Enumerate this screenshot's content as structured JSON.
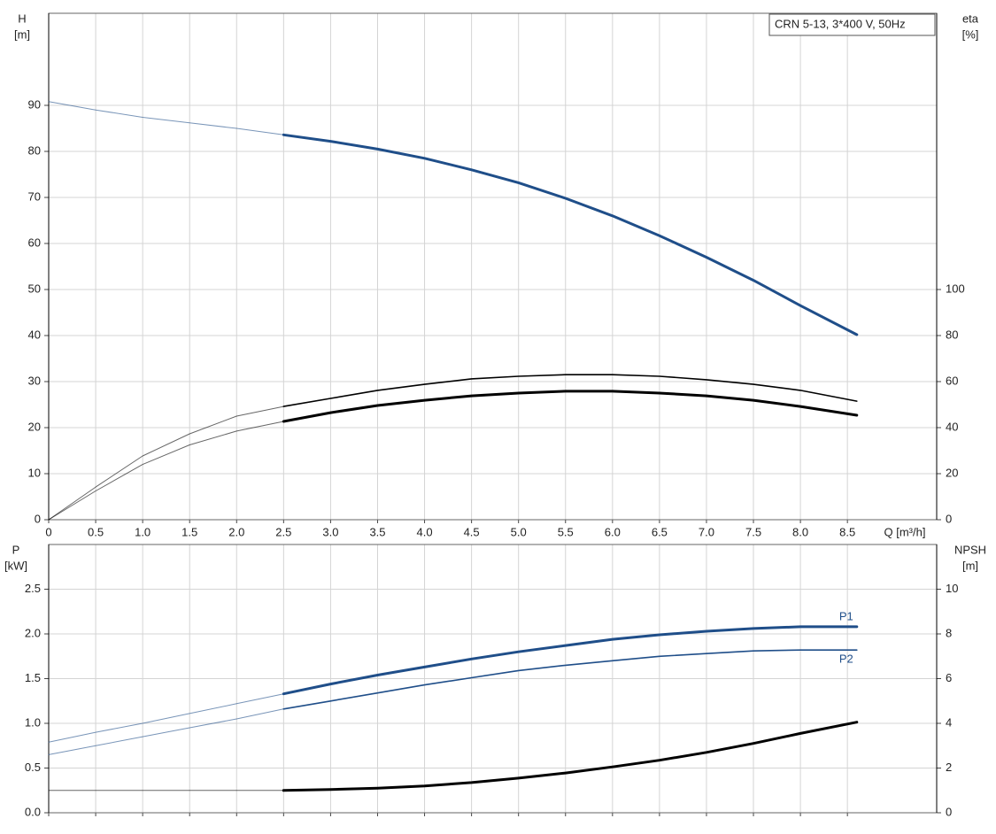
{
  "chart_data": [
    {
      "type": "line",
      "title": "CRN 5-13, 3*400 V, 50Hz",
      "ylabel": [
        "H",
        "[m]"
      ],
      "y2label": [
        "eta",
        "[%]"
      ],
      "xlabel": "Q [m³/h]",
      "xlim": [
        0,
        9.45
      ],
      "xticks": [
        0,
        0.5,
        {
          "value": 1,
          "label": "1.0"
        },
        1.5,
        {
          "value": 2,
          "label": "2.0"
        },
        2.5,
        {
          "value": 3,
          "label": "3.0"
        },
        3.5,
        {
          "value": 4,
          "label": "4.0"
        },
        4.5,
        {
          "value": 5,
          "label": "5.0"
        },
        5.5,
        {
          "value": 6,
          "label": "6.0"
        },
        6.5,
        {
          "value": 7,
          "label": "7.0"
        },
        7.5,
        {
          "value": 8,
          "label": "8.0"
        },
        8.5
      ],
      "ylim": [
        0,
        110
      ],
      "yticks": [
        0,
        10,
        20,
        30,
        40,
        50,
        60,
        70,
        80,
        90
      ],
      "y2lim": [
        0,
        220
      ],
      "y2ticks": [
        0,
        20,
        40,
        60,
        80,
        100
      ],
      "grid": true,
      "operating_range": [
        2.5,
        8.6
      ],
      "x": [
        0,
        0.5,
        1,
        1.5,
        2,
        2.5,
        3,
        3.5,
        4,
        4.5,
        5,
        5.5,
        6,
        6.5,
        7,
        7.5,
        8,
        8.6
      ],
      "series": [
        {
          "color": "#1f4e89",
          "style": "bold",
          "axis": "y",
          "values": [
            90.8,
            89,
            87.4,
            86.2,
            85,
            83.6,
            82.2,
            80.5,
            78.5,
            76,
            73.2,
            69.8,
            66,
            61.7,
            57,
            52,
            46.5,
            40.2
          ]
        },
        {
          "color": "#000000",
          "style": "regular",
          "axis": "y2",
          "values": [
            0,
            14.2,
            27.7,
            37.3,
            45,
            49.2,
            52.7,
            56.2,
            58.8,
            61.2,
            62.3,
            63,
            63,
            62.3,
            60.8,
            58.8,
            56.2,
            51.5
          ]
        },
        {
          "color": "#000000",
          "style": "bold",
          "axis": "y2",
          "values": [
            0,
            12.5,
            24,
            32.5,
            38.5,
            42.7,
            46.5,
            49.6,
            51.9,
            53.8,
            55,
            55.8,
            55.8,
            55,
            53.8,
            51.9,
            49.2,
            45.4
          ]
        }
      ]
    },
    {
      "type": "line",
      "ylabel": [
        "P",
        "[kW]"
      ],
      "y2label": [
        "NPSH",
        "[m]"
      ],
      "xlim": [
        0,
        9.45
      ],
      "ylim": [
        0,
        3
      ],
      "yticks": [
        {
          "value": 0,
          "label": "0.0"
        },
        0.5,
        {
          "value": 1,
          "label": "1.0"
        },
        1.5,
        {
          "value": 2,
          "label": "2.0"
        },
        2.5
      ],
      "y2lim": [
        0,
        12
      ],
      "y2ticks": [
        0,
        2,
        4,
        6,
        8,
        10
      ],
      "grid": true,
      "operating_range": [
        2.5,
        8.6
      ],
      "x": [
        0,
        0.5,
        1,
        1.5,
        2,
        2.5,
        3,
        3.5,
        4,
        4.5,
        5,
        5.5,
        6,
        6.5,
        7,
        7.5,
        8,
        8.6
      ],
      "series": [
        {
          "name": "P1",
          "color": "#1f4e89",
          "style": "bold",
          "axis": "y",
          "values": [
            0.79,
            0.9,
            1.0,
            1.11,
            1.22,
            1.33,
            1.44,
            1.54,
            1.63,
            1.72,
            1.8,
            1.87,
            1.94,
            1.99,
            2.03,
            2.06,
            2.08,
            2.08
          ]
        },
        {
          "name": "P2",
          "color": "#1f4e89",
          "style": "regular",
          "axis": "y",
          "values": [
            0.65,
            0.75,
            0.85,
            0.95,
            1.05,
            1.16,
            1.25,
            1.34,
            1.43,
            1.51,
            1.59,
            1.65,
            1.7,
            1.75,
            1.78,
            1.81,
            1.82,
            1.82
          ]
        },
        {
          "color": "#000000",
          "style": "bold",
          "axis": "y2",
          "values": [
            1.0,
            1.0,
            1.0,
            1.0,
            1.0,
            1.0,
            1.04,
            1.1,
            1.2,
            1.35,
            1.55,
            1.78,
            2.05,
            2.35,
            2.7,
            3.1,
            3.55,
            4.05
          ]
        }
      ]
    }
  ]
}
